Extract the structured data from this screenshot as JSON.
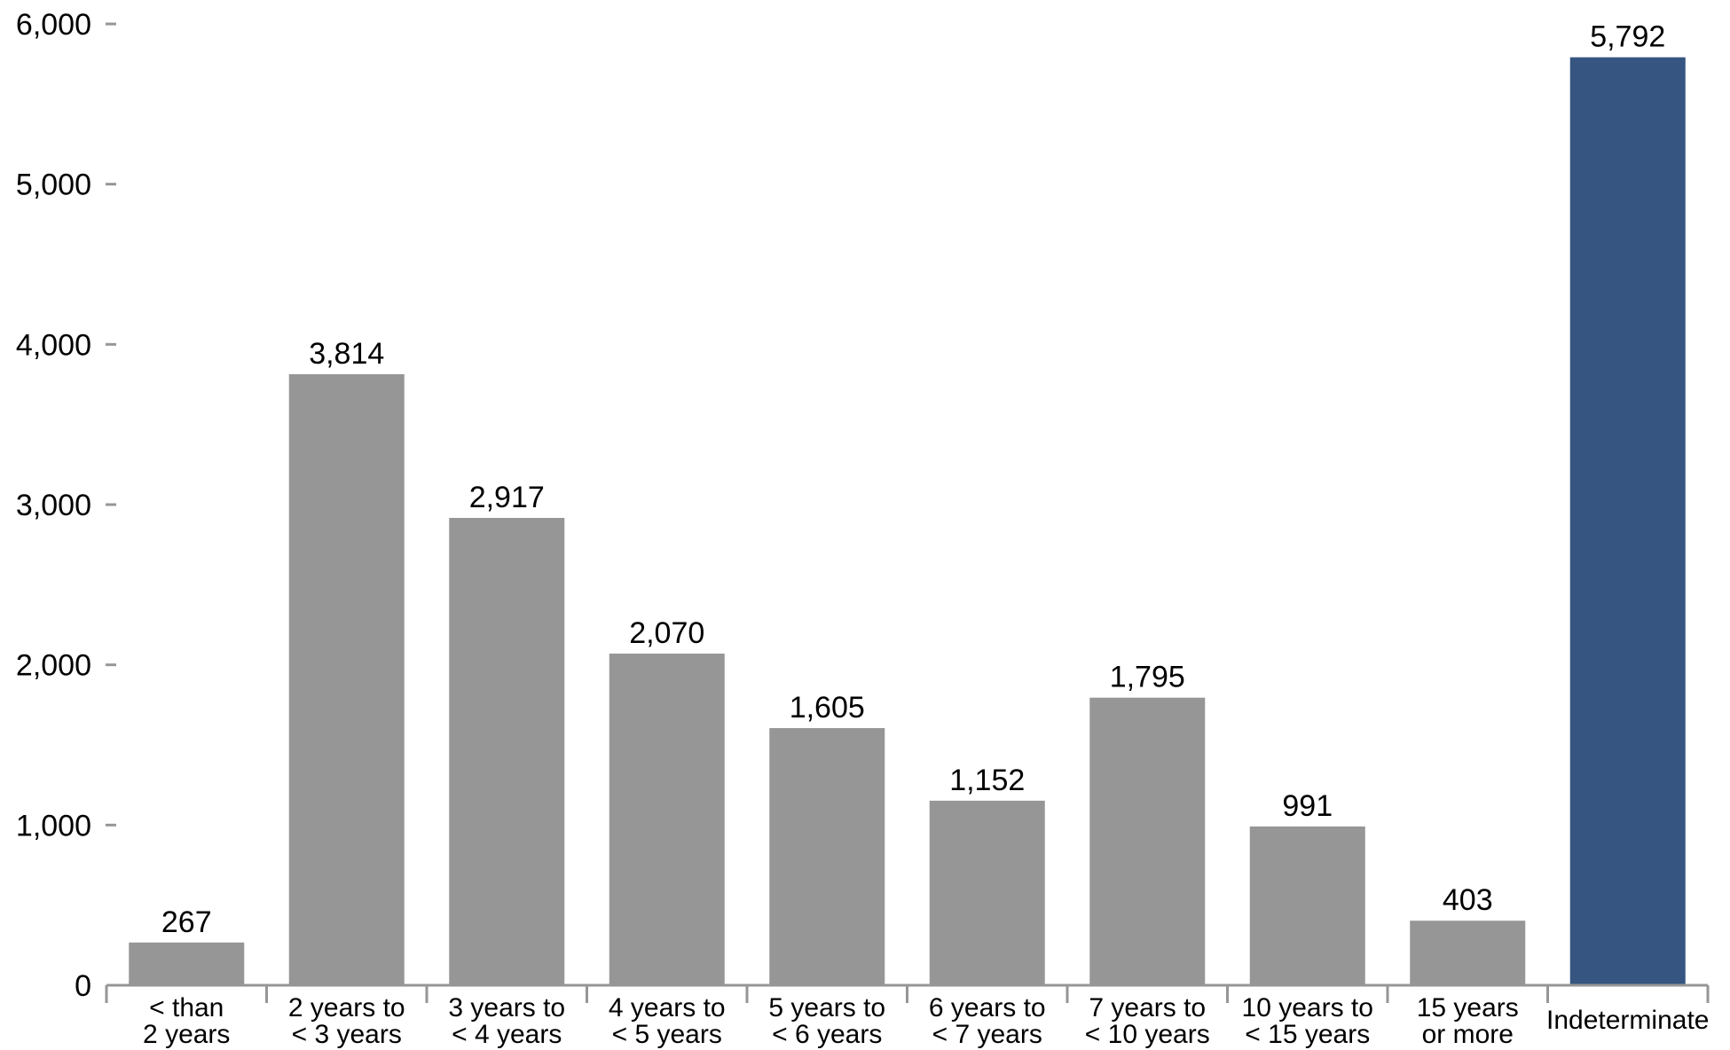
{
  "chart_data": {
    "type": "bar",
    "title": "",
    "xlabel": "",
    "ylabel": "",
    "ylim": [
      0,
      6000
    ],
    "yticks": [
      0,
      1000,
      2000,
      3000,
      4000,
      5000,
      6000
    ],
    "ytick_labels": [
      "0",
      "1,000",
      "2,000",
      "3,000",
      "4,000",
      "5,000",
      "6,000"
    ],
    "grid": false,
    "categories": [
      [
        "< than",
        "2 years"
      ],
      [
        "2 years to",
        "< 3 years"
      ],
      [
        "3 years to",
        "< 4 years"
      ],
      [
        "4 years to",
        "< 5 years"
      ],
      [
        "5 years to",
        "< 6 years"
      ],
      [
        "6 years to",
        "< 7 years"
      ],
      [
        "7 years to",
        "< 10 years"
      ],
      [
        "10 years to",
        "< 15 years"
      ],
      [
        "15 years",
        "or more"
      ],
      [
        "Indeterminate"
      ]
    ],
    "values": [
      267,
      3814,
      2917,
      2070,
      1605,
      1152,
      1795,
      991,
      403,
      5792
    ],
    "value_labels": [
      "267",
      "3,814",
      "2,917",
      "2,070",
      "1,605",
      "1,152",
      "1,795",
      "991",
      "403",
      "5,792"
    ],
    "colors": [
      "#969696",
      "#969696",
      "#969696",
      "#969696",
      "#969696",
      "#969696",
      "#969696",
      "#969696",
      "#969696",
      "#365580"
    ],
    "axis_color": "#969696"
  }
}
